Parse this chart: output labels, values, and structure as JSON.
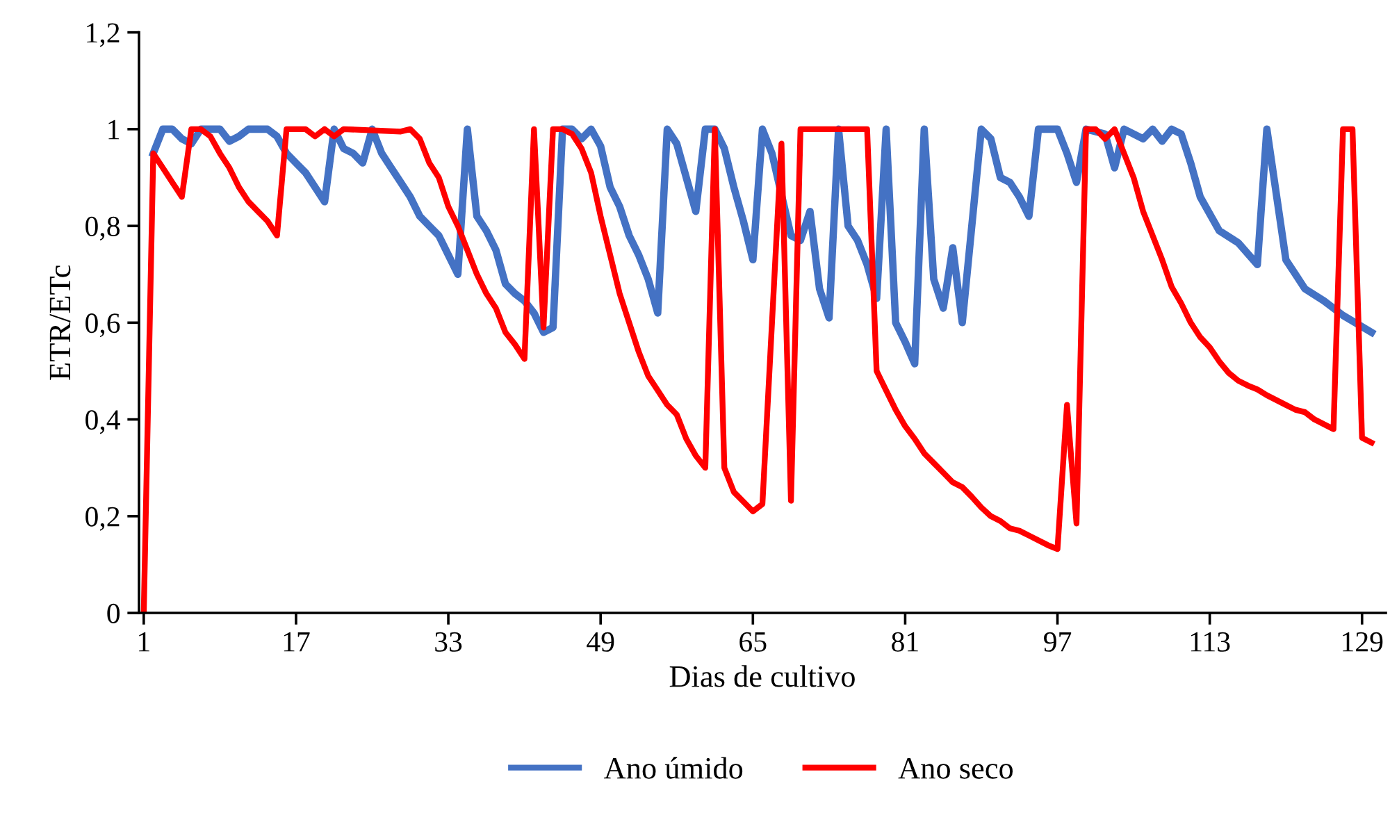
{
  "chart_data": {
    "type": "line",
    "xlabel": "Dias de cultivo",
    "ylabel": "ETR/ETc",
    "xlim": [
      0.5,
      131.5
    ],
    "xticks": [
      1,
      17,
      33,
      49,
      65,
      81,
      97,
      113,
      129
    ],
    "ylim": [
      0,
      1.2
    ],
    "yticks": [
      {
        "value": 0,
        "label": "0"
      },
      {
        "value": 0.2,
        "label": "0,2"
      },
      {
        "value": 0.4,
        "label": "0,4"
      },
      {
        "value": 0.6,
        "label": "0,6"
      },
      {
        "value": 0.8,
        "label": "0,8"
      },
      {
        "value": 1,
        "label": "1"
      },
      {
        "value": 1.2,
        "label": "1,2"
      }
    ],
    "grid": false,
    "legend": "bottom",
    "marker": "none",
    "line_style": "solid",
    "series": [
      {
        "name": "Ano úmido",
        "color": "#4472c4",
        "x": [
          2,
          3,
          4,
          5,
          6,
          7,
          9,
          10,
          11,
          12,
          14,
          15,
          16,
          17,
          18,
          19,
          20,
          21,
          22,
          23,
          24,
          25,
          26,
          27,
          28,
          29,
          30,
          31,
          32,
          33,
          34,
          35,
          36,
          37,
          38,
          39,
          40,
          41,
          42,
          43,
          44,
          45,
          46,
          47,
          48,
          49,
          50,
          51,
          52,
          53,
          54,
          55,
          56,
          57,
          58,
          59,
          60,
          61,
          62,
          63,
          64,
          65,
          66,
          67,
          68,
          69,
          70,
          71,
          72,
          73,
          74,
          75,
          76,
          77,
          78,
          79,
          80,
          81,
          82,
          83,
          84,
          85,
          86,
          87,
          89,
          90,
          91,
          92,
          93,
          94,
          95,
          97,
          98,
          99,
          100,
          102,
          103,
          104,
          106,
          107,
          108,
          109,
          110,
          111,
          112,
          114,
          116,
          118,
          119,
          121,
          122,
          123,
          125,
          127,
          130
        ],
        "values": [
          0.95,
          1.0,
          1.0,
          0.98,
          0.97,
          1.0,
          1.0,
          0.975,
          0.985,
          1.0,
          1.0,
          0.985,
          0.95,
          0.93,
          0.91,
          0.88,
          0.85,
          1.0,
          0.96,
          0.95,
          0.93,
          1.0,
          0.95,
          0.92,
          0.89,
          0.86,
          0.82,
          0.8,
          0.78,
          0.74,
          0.7,
          1.0,
          0.82,
          0.79,
          0.75,
          0.68,
          0.66,
          0.645,
          0.62,
          0.58,
          0.59,
          1.0,
          1.0,
          0.98,
          1.0,
          0.965,
          0.88,
          0.84,
          0.78,
          0.74,
          0.69,
          0.62,
          1.0,
          0.97,
          0.9,
          0.83,
          1.0,
          1.0,
          0.96,
          0.88,
          0.81,
          0.73,
          1.0,
          0.95,
          0.865,
          0.78,
          0.77,
          0.83,
          0.67,
          0.61,
          1.0,
          0.8,
          0.77,
          0.72,
          0.65,
          1.0,
          0.6,
          0.56,
          0.515,
          1.0,
          0.69,
          0.63,
          0.755,
          0.6,
          1.0,
          0.98,
          0.9,
          0.89,
          0.86,
          0.82,
          1.0,
          1.0,
          0.95,
          0.89,
          1.0,
          0.99,
          0.92,
          1.0,
          0.98,
          1.0,
          0.975,
          1.0,
          0.99,
          0.93,
          0.86,
          0.79,
          0.765,
          0.72,
          1.0,
          0.73,
          0.7,
          0.67,
          0.645,
          0.615,
          0.58
        ]
      },
      {
        "name": "Ano seco",
        "color": "#ff0000",
        "x": [
          1,
          2,
          3,
          4,
          5,
          6,
          7,
          8,
          9,
          10,
          11,
          12,
          13,
          14,
          15,
          16,
          17,
          18,
          19,
          20,
          21,
          22,
          28,
          29,
          30,
          31,
          32,
          33,
          34,
          35,
          36,
          37,
          38,
          39,
          40,
          41,
          42,
          43,
          44,
          45,
          46,
          47,
          48,
          49,
          50,
          51,
          52,
          53,
          54,
          55,
          56,
          57,
          58,
          59,
          60,
          61,
          62,
          63,
          64,
          65,
          66,
          68,
          69,
          70,
          77,
          78,
          79,
          80,
          81,
          82,
          83,
          84,
          85,
          86,
          87,
          88,
          89,
          90,
          91,
          92,
          93,
          94,
          96,
          97,
          98,
          99,
          100,
          101,
          102,
          103,
          104,
          105,
          106,
          107,
          108,
          109,
          110,
          111,
          112,
          113,
          114,
          115,
          116,
          117,
          118,
          119,
          120,
          121,
          122,
          123,
          124,
          125,
          126,
          127,
          128,
          129,
          130
        ],
        "values": [
          0,
          0.95,
          0.92,
          0.89,
          0.86,
          1.0,
          1.0,
          0.985,
          0.95,
          0.92,
          0.88,
          0.85,
          0.83,
          0.81,
          0.78,
          1.0,
          1.0,
          1.0,
          0.985,
          1.0,
          0.985,
          1.0,
          0.995,
          1.0,
          0.98,
          0.93,
          0.9,
          0.84,
          0.8,
          0.75,
          0.7,
          0.66,
          0.63,
          0.58,
          0.555,
          0.525,
          1.0,
          0.59,
          1.0,
          1.0,
          0.99,
          0.96,
          0.91,
          0.82,
          0.74,
          0.66,
          0.6,
          0.54,
          0.49,
          0.46,
          0.43,
          0.41,
          0.36,
          0.325,
          0.3,
          1.0,
          0.3,
          0.25,
          0.23,
          0.21,
          0.225,
          0.97,
          0.232,
          1.0,
          1.0,
          0.5,
          0.46,
          0.42,
          0.386,
          0.36,
          0.33,
          0.31,
          0.29,
          0.27,
          0.26,
          0.24,
          0.218,
          0.2,
          0.19,
          0.175,
          0.17,
          0.16,
          0.14,
          0.132,
          0.43,
          0.185,
          1.0,
          1.0,
          0.98,
          1.0,
          0.95,
          0.9,
          0.83,
          0.78,
          0.73,
          0.674,
          0.64,
          0.6,
          0.57,
          0.549,
          0.52,
          0.496,
          0.48,
          0.47,
          0.462,
          0.45,
          0.44,
          0.43,
          0.42,
          0.415,
          0.4,
          0.39,
          0.38,
          1.0,
          1.0,
          0.362,
          0.352
        ]
      }
    ]
  }
}
